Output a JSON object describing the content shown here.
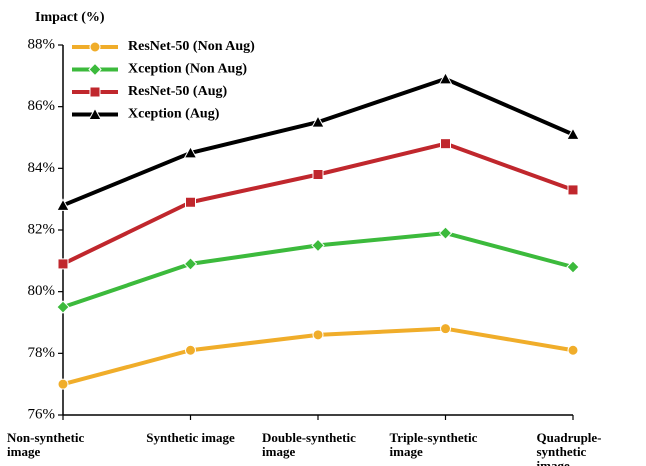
{
  "chart_data": {
    "type": "line",
    "y_label": "Impact (%)",
    "categories": [
      "Non-synthetic image",
      "Synthetic image",
      "Double-synthetic image",
      "Triple-synthetic image",
      "Quadruple-synthetic image"
    ],
    "series": [
      {
        "name": "ResNet-50 (Non Aug)",
        "color": "#f0ad2a",
        "marker": "circle",
        "values": [
          77.0,
          78.1,
          78.6,
          78.8,
          78.1
        ]
      },
      {
        "name": "Xception (Non Aug)",
        "color": "#3cba3c",
        "marker": "diamond",
        "values": [
          79.5,
          80.9,
          81.5,
          81.9,
          80.8
        ]
      },
      {
        "name": "ResNet-50 (Aug)",
        "color": "#c0272d",
        "marker": "square",
        "values": [
          80.9,
          82.9,
          83.8,
          84.8,
          83.3
        ]
      },
      {
        "name": "Xception (Aug)",
        "color": "#000000",
        "marker": "triangle",
        "values": [
          82.8,
          84.5,
          85.5,
          86.9,
          85.1
        ]
      }
    ],
    "ylim": [
      76,
      88
    ],
    "yticks": [
      {
        "value": 76,
        "label": "76%"
      },
      {
        "value": 78,
        "label": "78%"
      },
      {
        "value": 80,
        "label": "80%"
      },
      {
        "value": 82,
        "label": "82%"
      },
      {
        "value": 84,
        "label": "84%"
      },
      {
        "value": 86,
        "label": "86%"
      },
      {
        "value": 88,
        "label": "88%"
      }
    ],
    "legend": "upper left"
  }
}
